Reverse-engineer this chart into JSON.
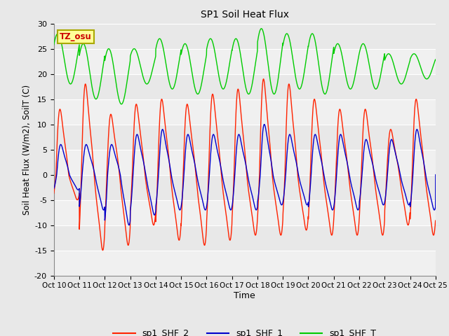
{
  "title": "SP1 Soil Heat Flux",
  "xlabel": "Time",
  "ylabel": "Soil Heat Flux (W/m2), SoilT (C)",
  "ylim": [
    -20,
    30
  ],
  "xlim": [
    0,
    15
  ],
  "xtick_labels": [
    "Oct 10",
    "Oct 11",
    "Oct 12",
    "Oct 13",
    "Oct 14",
    "Oct 15",
    "Oct 16",
    "Oct 17",
    "Oct 18",
    "Oct 19",
    "Oct 20",
    "Oct 21",
    "Oct 22",
    "Oct 23",
    "Oct 24",
    "Oct 25"
  ],
  "ytick_values": [
    -20,
    -15,
    -10,
    -5,
    0,
    5,
    10,
    15,
    20,
    25,
    30
  ],
  "line_colors": [
    "#ff2200",
    "#0000cc",
    "#00cc00"
  ],
  "line_labels": [
    "sp1_SHF_2",
    "sp1_SHF_1",
    "sp1_SHF_T"
  ],
  "bg_color": "#e8e8e8",
  "band_color": "#f0f0f0",
  "tz_label": "TZ_osu",
  "tz_text_color": "#cc0000",
  "tz_box_color": "#ffff99",
  "tz_box_edge": "#aaa800"
}
